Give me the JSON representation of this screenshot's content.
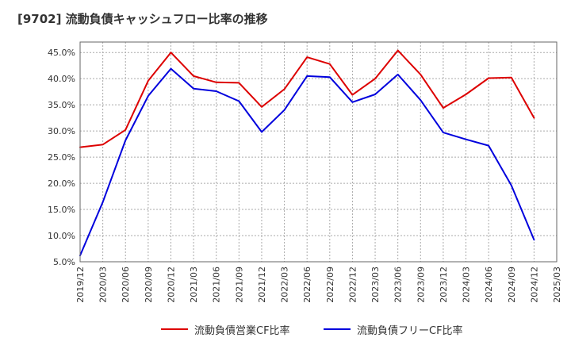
{
  "title": "[9702]  流動負債キャッシュフロー比率の推移",
  "chart_data": {
    "type": "line",
    "title": "[9702]  流動負債キャッシュフロー比率の推移",
    "x": [
      "2019/12",
      "2020/03",
      "2020/06",
      "2020/09",
      "2020/12",
      "2021/03",
      "2021/06",
      "2021/09",
      "2021/12",
      "2022/03",
      "2022/06",
      "2022/09",
      "2022/12",
      "2023/03",
      "2023/06",
      "2023/09",
      "2023/12",
      "2024/03",
      "2024/06",
      "2024/09",
      "2024/12",
      "2025/03"
    ],
    "xlabel": "",
    "ylabel": "",
    "ylim": [
      5.0,
      47.0
    ],
    "yticks": [
      "5.0%",
      "10.0%",
      "15.0%",
      "20.0%",
      "25.0%",
      "30.0%",
      "35.0%",
      "40.0%",
      "45.0%"
    ],
    "ytick_values": [
      5,
      10,
      15,
      20,
      25,
      30,
      35,
      40,
      45
    ],
    "grid": true,
    "legend_position": "bottom",
    "series": [
      {
        "name": "流動負債営業CF比率",
        "color": "#dd0000",
        "values": [
          26.9,
          27.4,
          30.2,
          39.6,
          45.0,
          40.5,
          39.3,
          39.2,
          34.6,
          38.0,
          44.1,
          42.8,
          36.9,
          40.0,
          45.4,
          40.8,
          34.4,
          37.0,
          40.1,
          40.2,
          32.5,
          null
        ]
      },
      {
        "name": "流動負債フリーCF比率",
        "color": "#0000dd",
        "values": [
          6.2,
          16.4,
          28.2,
          36.7,
          41.9,
          38.1,
          37.6,
          35.7,
          29.8,
          34.0,
          40.5,
          40.3,
          35.5,
          37.0,
          40.8,
          35.9,
          29.7,
          28.4,
          27.2,
          19.6,
          9.2,
          null
        ]
      }
    ]
  },
  "colors": {
    "plot_border": "#666666",
    "grid": "#aaaaaa",
    "tick_text": "#333333"
  }
}
